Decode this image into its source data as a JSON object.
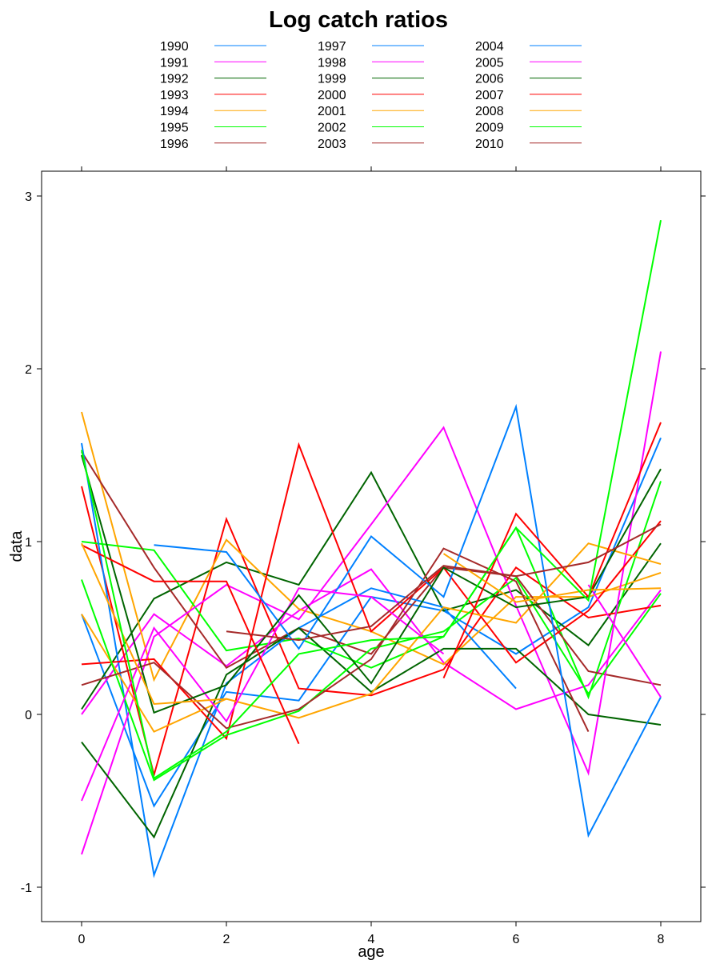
{
  "chart_data": {
    "type": "line",
    "title": "Log catch ratios",
    "xlabel": "age",
    "ylabel": "data",
    "xlim": [
      -0.5,
      8.5
    ],
    "ylim": [
      -1.2,
      3.1
    ],
    "xticks": [
      0,
      2,
      4,
      6,
      8
    ],
    "yticks": [
      -1,
      0,
      1,
      2,
      3
    ],
    "x": [
      0,
      1,
      2,
      3,
      4,
      5,
      6,
      7,
      8
    ],
    "grid": false,
    "legend": {
      "placement": "top",
      "columns": 3
    },
    "series": [
      {
        "name": "1990",
        "color": "#0080ff",
        "values": [
          0.58,
          -0.53,
          0.13,
          0.08,
          0.68,
          0.6,
          0.35,
          0.62,
          1.6
        ]
      },
      {
        "name": "1991",
        "color": "#ff00ff",
        "values": [
          0.0,
          0.58,
          0.28,
          0.6,
          0.84,
          0.3,
          0.03,
          0.17,
          0.72
        ]
      },
      {
        "name": "1992",
        "color": "#006400",
        "values": [
          0.03,
          0.67,
          0.88,
          0.75,
          1.4,
          0.6,
          0.72,
          0.4,
          0.99
        ]
      },
      {
        "name": "1993",
        "color": "#ff0000",
        "values": [
          1.32,
          -0.35,
          1.13,
          0.15,
          0.11,
          0.26,
          0.85,
          0.56,
          0.63
        ]
      },
      {
        "name": "1994",
        "color": "#ffa500",
        "values": [
          1.75,
          0.2,
          1.01,
          0.61,
          0.48,
          0.29,
          0.68,
          0.68,
          0.82
        ]
      },
      {
        "name": "1995",
        "color": "#00ff00",
        "values": [
          1.0,
          0.95,
          0.37,
          0.44,
          0.27,
          0.45,
          1.08,
          0.1,
          1.35
        ]
      },
      {
        "name": "1996",
        "color": "#a52a2a",
        "values": [
          1.52,
          0.85,
          0.27,
          0.5,
          0.35,
          0.85,
          0.8,
          0.25,
          0.17
        ]
      },
      {
        "name": "1997",
        "color": "#0080ff",
        "values": [
          1.57,
          -0.93,
          0.18,
          0.5,
          0.73,
          0.62,
          0.15,
          null,
          null
        ]
      },
      {
        "name": "1998",
        "color": "#ff00ff",
        "values": [
          -0.81,
          0.45,
          0.75,
          0.55,
          1.1,
          1.66,
          0.63,
          -0.34,
          2.1
        ]
      },
      {
        "name": "1999",
        "color": "#006400",
        "values": [
          -0.16,
          -0.71,
          0.23,
          0.5,
          0.13,
          0.38,
          0.38,
          0.0,
          -0.06
        ]
      },
      {
        "name": "2000",
        "color": "#ff0000",
        "values": [
          0.29,
          0.32,
          -0.14,
          1.56,
          0.48,
          0.85,
          0.3,
          0.6,
          1.12
        ]
      },
      {
        "name": "2001",
        "color": "#ffa500",
        "values": [
          0.58,
          -0.1,
          0.09,
          -0.02,
          0.12,
          0.62,
          0.53,
          0.99,
          0.87
        ]
      },
      {
        "name": "2002",
        "color": "#00ff00",
        "values": [
          0.78,
          -0.38,
          -0.12,
          0.02,
          0.38,
          0.48,
          0.79,
          0.12,
          0.7
        ]
      },
      {
        "name": "2003",
        "color": "#a52a2a",
        "values": [
          0.17,
          0.3,
          -0.08,
          0.03,
          0.32,
          0.96,
          0.77,
          -0.1,
          null
        ]
      },
      {
        "name": "2004",
        "color": "#0080ff",
        "values": [
          null,
          0.98,
          0.94,
          0.38,
          1.03,
          0.68,
          1.78,
          -0.7,
          0.1
        ]
      },
      {
        "name": "2005",
        "color": "#ff00ff",
        "values": [
          -0.5,
          0.5,
          -0.04,
          0.73,
          0.68,
          0.35,
          null,
          0.75,
          0.1
        ]
      },
      {
        "name": "2006",
        "color": "#006400",
        "values": [
          1.5,
          0.01,
          0.17,
          0.69,
          0.18,
          0.85,
          0.62,
          0.68,
          1.42
        ]
      },
      {
        "name": "2007",
        "color": "#ff0000",
        "values": [
          0.98,
          0.77,
          0.77,
          -0.17,
          null,
          0.21,
          1.16,
          0.68,
          1.69
        ]
      },
      {
        "name": "2008",
        "color": "#ffa500",
        "values": [
          0.99,
          0.06,
          0.09,
          null,
          null,
          0.93,
          0.65,
          0.72,
          0.73
        ]
      },
      {
        "name": "2009",
        "color": "#00ff00",
        "values": [
          1.53,
          -0.37,
          -0.1,
          0.35,
          0.43,
          0.45,
          1.08,
          0.66,
          2.86
        ]
      },
      {
        "name": "2010",
        "color": "#a52a2a",
        "values": [
          null,
          null,
          0.48,
          0.43,
          0.51,
          0.86,
          0.8,
          0.88,
          1.1
        ]
      }
    ]
  }
}
